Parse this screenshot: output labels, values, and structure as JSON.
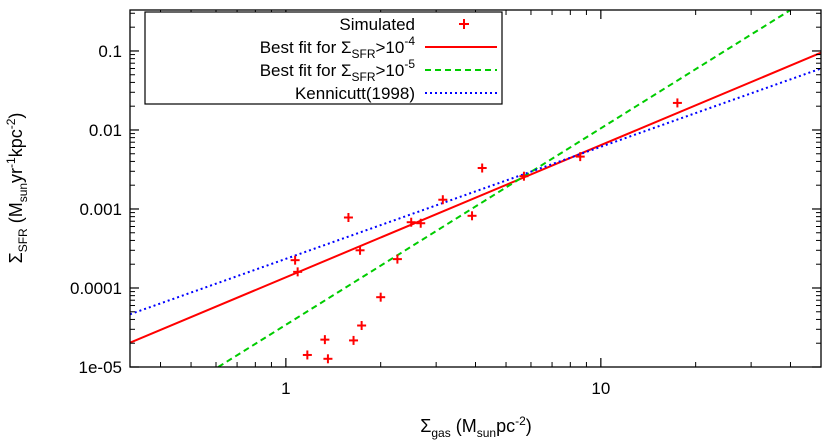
{
  "chart_data": {
    "type": "scatter",
    "xscale": "log",
    "yscale": "log",
    "xlim": [
      0.32,
      50
    ],
    "ylim": [
      1e-05,
      0.33
    ],
    "xlabel": {
      "sym": "Σ",
      "sub": "gas",
      "pre": " (M",
      "sub2": "sun",
      "mid": "pc",
      "sup": "-2",
      "post": ")"
    },
    "ylabel": {
      "sym": "Σ",
      "sub": "SFR",
      "pre": " (M",
      "sub2": "sun",
      "mid": "yr",
      "sup": "-1",
      "mid2": "kpc",
      "sup2": "-2",
      "post": ")"
    },
    "x_ticks": [
      {
        "value": 1,
        "label": "1"
      },
      {
        "value": 10,
        "label": "10"
      }
    ],
    "y_ticks": [
      {
        "value": 1e-05,
        "label": "1e-05"
      },
      {
        "value": 0.0001,
        "label": "0.0001"
      },
      {
        "value": 0.001,
        "label": "0.001"
      },
      {
        "value": 0.01,
        "label": "0.01"
      },
      {
        "value": 0.1,
        "label": "0.1"
      }
    ],
    "series": [
      {
        "name": "Simulated",
        "kind": "points",
        "color": "#ff0000",
        "points": [
          [
            1.07,
            0.000225
          ],
          [
            1.09,
            0.00016
          ],
          [
            1.17,
            1.42e-05
          ],
          [
            1.33,
            2.22e-05
          ],
          [
            1.36,
            1.27e-05
          ],
          [
            1.58,
            0.00078
          ],
          [
            1.64,
            2.17e-05
          ],
          [
            1.72,
            0.0003
          ],
          [
            1.74,
            3.35e-05
          ],
          [
            2.0,
            7.65e-05
          ],
          [
            2.26,
            0.000232
          ],
          [
            2.5,
            0.00068
          ],
          [
            2.68,
            0.00066
          ],
          [
            3.15,
            0.00131
          ],
          [
            3.9,
            0.00082
          ],
          [
            4.2,
            0.0033
          ],
          [
            5.7,
            0.0026
          ],
          [
            8.6,
            0.0046
          ],
          [
            17.5,
            0.022
          ]
        ]
      },
      {
        "name": "Best fit for Σ_SFR>10^-4",
        "legend": {
          "pre": "Best fit for Σ",
          "sub": "SFR",
          "mid": ">10",
          "sup": "-4"
        },
        "kind": "line",
        "color": "#ff0000",
        "dash": "",
        "endpoints": [
          [
            0.32,
            2.03e-05
          ],
          [
            50,
            0.095
          ]
        ]
      },
      {
        "name": "Best fit for Σ_SFR>10^-5",
        "legend": {
          "pre": "Best fit for Σ",
          "sub": "SFR",
          "mid": ">10",
          "sup": "-5"
        },
        "kind": "line",
        "color": "#00cc00",
        "dash": "6,4",
        "endpoints": [
          [
            0.61,
            1e-05
          ],
          [
            40,
            0.33
          ]
        ]
      },
      {
        "name": "Kennicutt(1998)",
        "legend": {
          "pre": "Kennicutt(1998)"
        },
        "kind": "line",
        "color": "#0000ff",
        "dash": "2,3",
        "endpoints": [
          [
            0.32,
            4.65e-05
          ],
          [
            50,
            0.06
          ]
        ]
      }
    ]
  }
}
